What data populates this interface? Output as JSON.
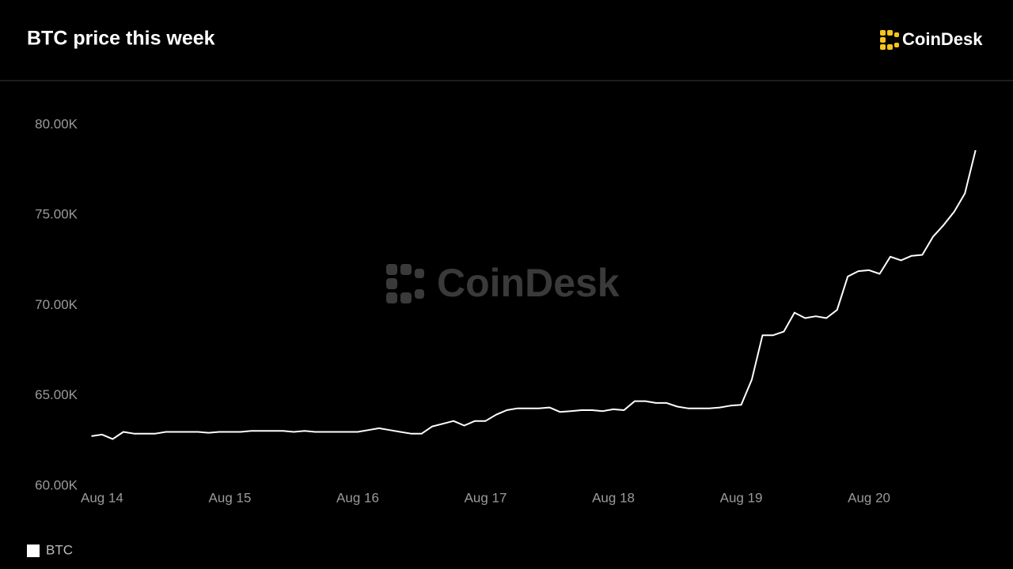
{
  "brand": "CoinDesk",
  "chart_data": {
    "type": "line",
    "title": "BTC price this week",
    "categories": [
      null,
      "Aug 14",
      null,
      null,
      null,
      null,
      null,
      null,
      null,
      null,
      null,
      null,
      null,
      "Aug 15",
      null,
      null,
      null,
      null,
      null,
      null,
      null,
      null,
      null,
      null,
      null,
      "Aug 16",
      null,
      null,
      null,
      null,
      null,
      null,
      null,
      null,
      null,
      null,
      null,
      "Aug 17",
      null,
      null,
      null,
      null,
      null,
      null,
      null,
      null,
      null,
      null,
      null,
      "Aug 18",
      null,
      null,
      null,
      null,
      null,
      null,
      null,
      null,
      null,
      null,
      null,
      "Aug 19",
      null,
      null,
      null,
      null,
      null,
      null,
      null,
      null,
      null,
      null,
      null,
      "Aug 20",
      null,
      null,
      null,
      null,
      null,
      null,
      null,
      null,
      null,
      null
    ],
    "series": [
      {
        "name": "BTC",
        "color": "#ffffff",
        "values": [
          62760,
          62850,
          62600,
          63000,
          62900,
          62900,
          62900,
          63000,
          63000,
          63000,
          63000,
          62950,
          63000,
          63000,
          63000,
          63050,
          63050,
          63050,
          63050,
          63000,
          63050,
          63000,
          63000,
          63000,
          63000,
          63000,
          63100,
          63200,
          63100,
          63000,
          62900,
          62900,
          63300,
          63450,
          63600,
          63350,
          63600,
          63600,
          63950,
          64200,
          64300,
          64300,
          64300,
          64350,
          64100,
          64150,
          64200,
          64200,
          64150,
          64250,
          64200,
          64700,
          64700,
          64600,
          64600,
          64400,
          64300,
          64300,
          64300,
          64350,
          64450,
          64500,
          65900,
          68350,
          68350,
          68550,
          69600,
          69300,
          69400,
          69300,
          69750,
          71600,
          71900,
          71950,
          71750,
          72700,
          72500,
          72750,
          72800,
          73800,
          74450,
          75200,
          76200,
          78600
        ]
      }
    ],
    "ylim": [
      60000,
      80000
    ],
    "yticks": [
      {
        "value": 60000,
        "label": "60.00K"
      },
      {
        "value": 65000,
        "label": "65.00K"
      },
      {
        "value": 70000,
        "label": "70.00K"
      },
      {
        "value": 75000,
        "label": "75.00K"
      },
      {
        "value": 80000,
        "label": "80.00K"
      }
    ],
    "grid": false
  }
}
